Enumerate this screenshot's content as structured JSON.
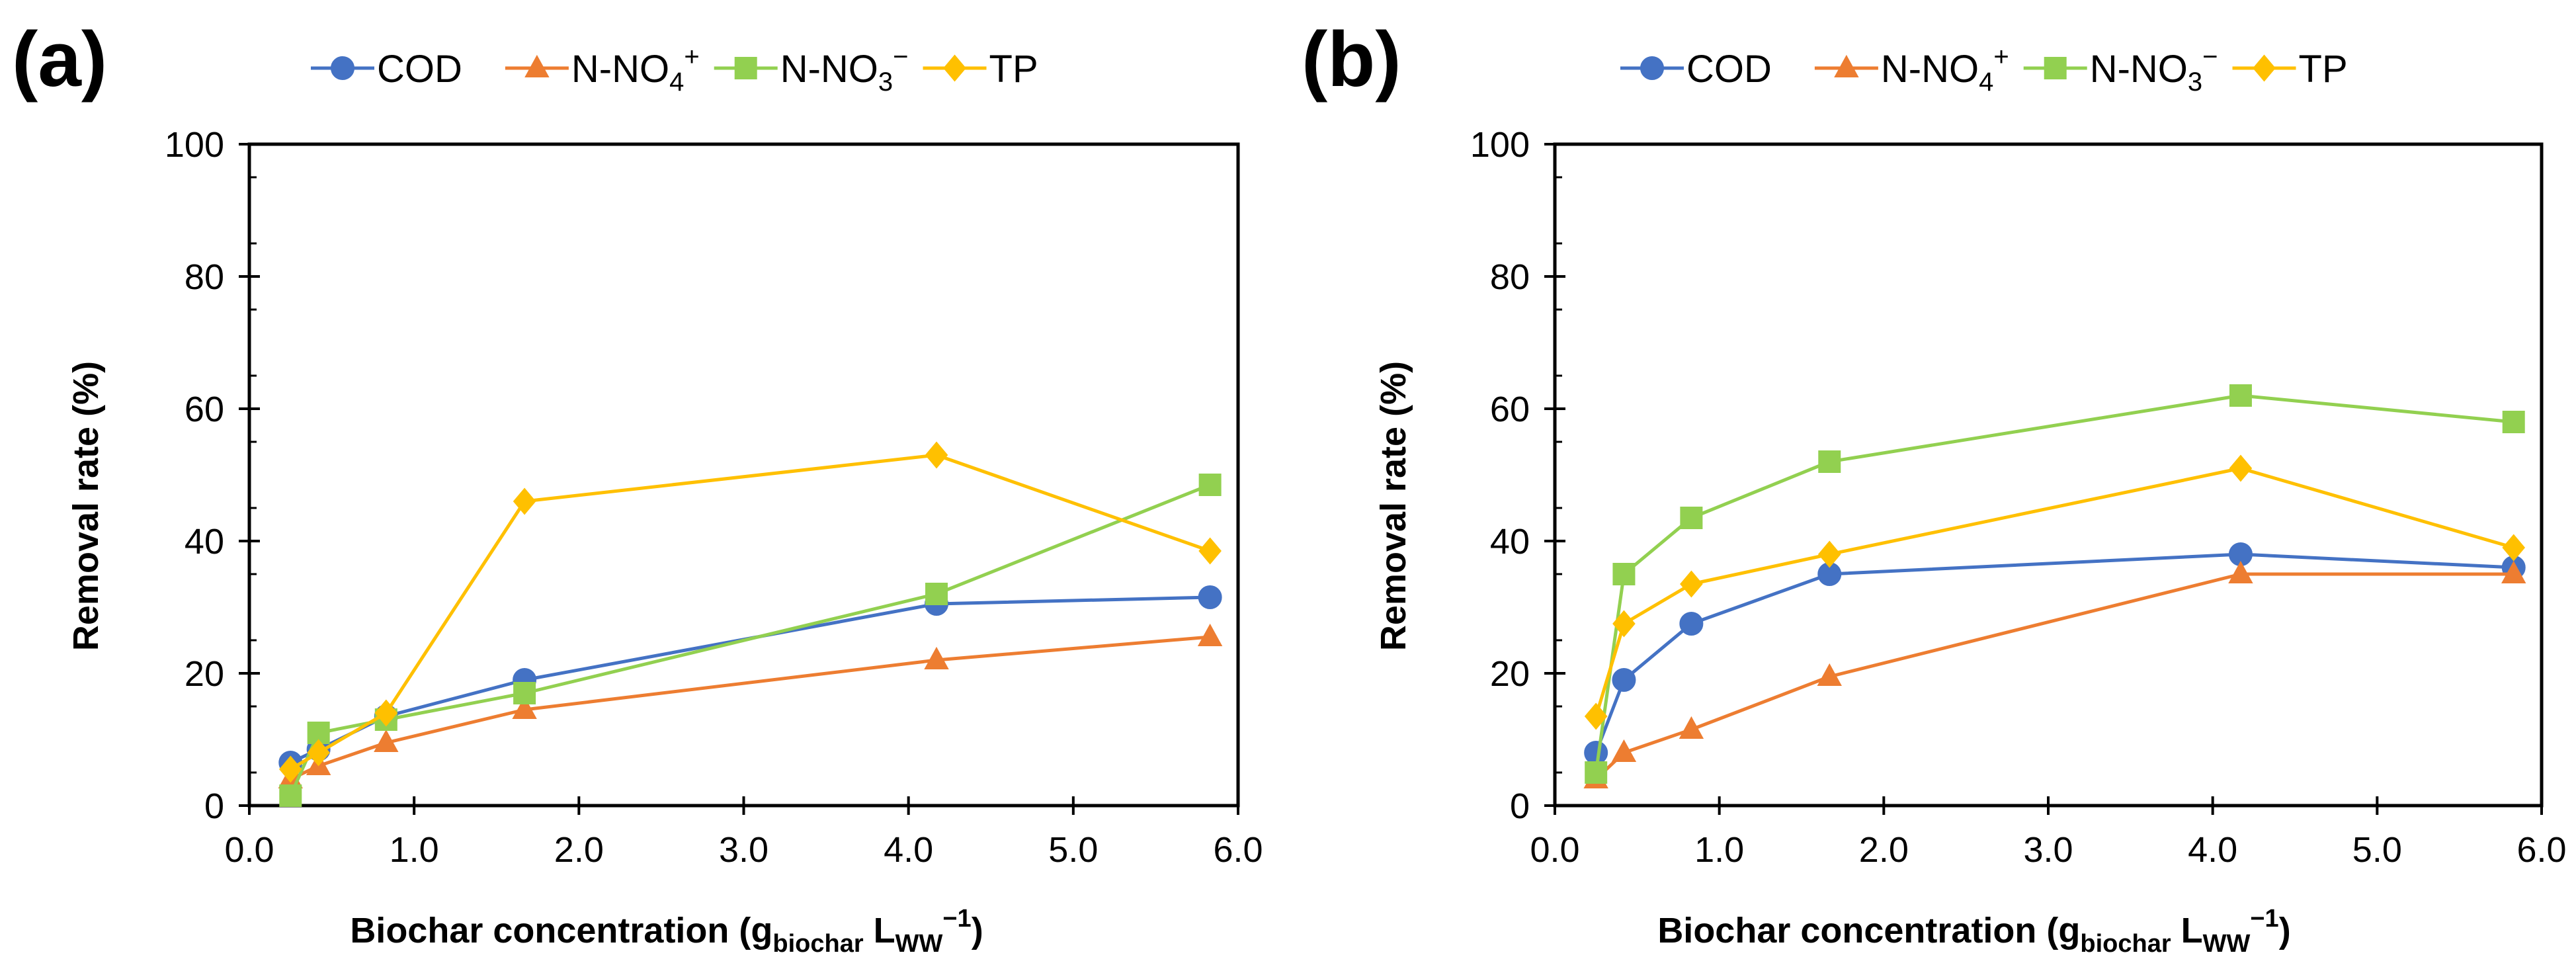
{
  "colors": {
    "COD": "#4472C4",
    "N-NO4+": "#ED7D31",
    "N-NO3-": "#92D050",
    "TP": "#FFC000"
  },
  "legend": [
    {
      "key": "COD",
      "base": "COD",
      "sub": "",
      "sup": "",
      "marker": "circle"
    },
    {
      "key": "N-NO4+",
      "base": "N-NO",
      "sub": "4",
      "sup": "+",
      "marker": "triangle"
    },
    {
      "key": "N-NO3-",
      "base": "N-NO",
      "sub": "3",
      "sup": "−",
      "marker": "square"
    },
    {
      "key": "TP",
      "base": "TP",
      "sub": "",
      "sup": "",
      "marker": "diamond"
    }
  ],
  "xlabel": {
    "prefix": "Biochar concentration (g",
    "sub1": "biochar",
    "mid": " L",
    "sub2": "WW",
    "sup": "−1",
    "suffix": ")"
  },
  "chart_data": [
    {
      "type": "line",
      "panel_label": "(a)",
      "ylabel": "Removal rate (%)",
      "xlim": [
        0,
        6
      ],
      "ylim": [
        0,
        100
      ],
      "xticks": [
        "0.0",
        "1.0",
        "2.0",
        "3.0",
        "4.0",
        "5.0",
        "6.0"
      ],
      "yticks": [
        "0",
        "20",
        "40",
        "60",
        "80",
        "100"
      ],
      "x": [
        0.25,
        0.42,
        0.83,
        1.67,
        4.17,
        5.83
      ],
      "series": [
        {
          "name": "COD",
          "values": [
            6.5,
            8.5,
            13.5,
            19.0,
            30.5,
            31.5
          ]
        },
        {
          "name": "N-NO4+",
          "values": [
            4.0,
            6.0,
            9.5,
            14.5,
            22.0,
            25.5
          ]
        },
        {
          "name": "N-NO3-",
          "values": [
            1.5,
            11.0,
            13.0,
            17.0,
            32.0,
            48.5
          ]
        },
        {
          "name": "TP",
          "values": [
            5.5,
            8.0,
            14.0,
            46.0,
            53.0,
            38.5
          ]
        }
      ]
    },
    {
      "type": "line",
      "panel_label": "(b)",
      "ylabel": "Removal rate (%)",
      "xlim": [
        0,
        6
      ],
      "ylim": [
        0,
        100
      ],
      "xticks": [
        "0.0",
        "1.0",
        "2.0",
        "3.0",
        "4.0",
        "5.0",
        "6.0"
      ],
      "yticks": [
        "0",
        "20",
        "40",
        "60",
        "80",
        "100"
      ],
      "x": [
        0.25,
        0.42,
        0.83,
        1.67,
        4.17,
        5.83
      ],
      "series": [
        {
          "name": "COD",
          "values": [
            8.0,
            19.0,
            27.5,
            35.0,
            38.0,
            36.0
          ]
        },
        {
          "name": "N-NO4+",
          "values": [
            4.0,
            8.0,
            11.5,
            19.5,
            35.0,
            35.0
          ]
        },
        {
          "name": "N-NO3-",
          "values": [
            5.0,
            35.0,
            43.5,
            52.0,
            62.0,
            58.0
          ]
        },
        {
          "name": "TP",
          "values": [
            13.5,
            27.5,
            33.5,
            38.0,
            51.0,
            39.0
          ]
        }
      ]
    }
  ]
}
